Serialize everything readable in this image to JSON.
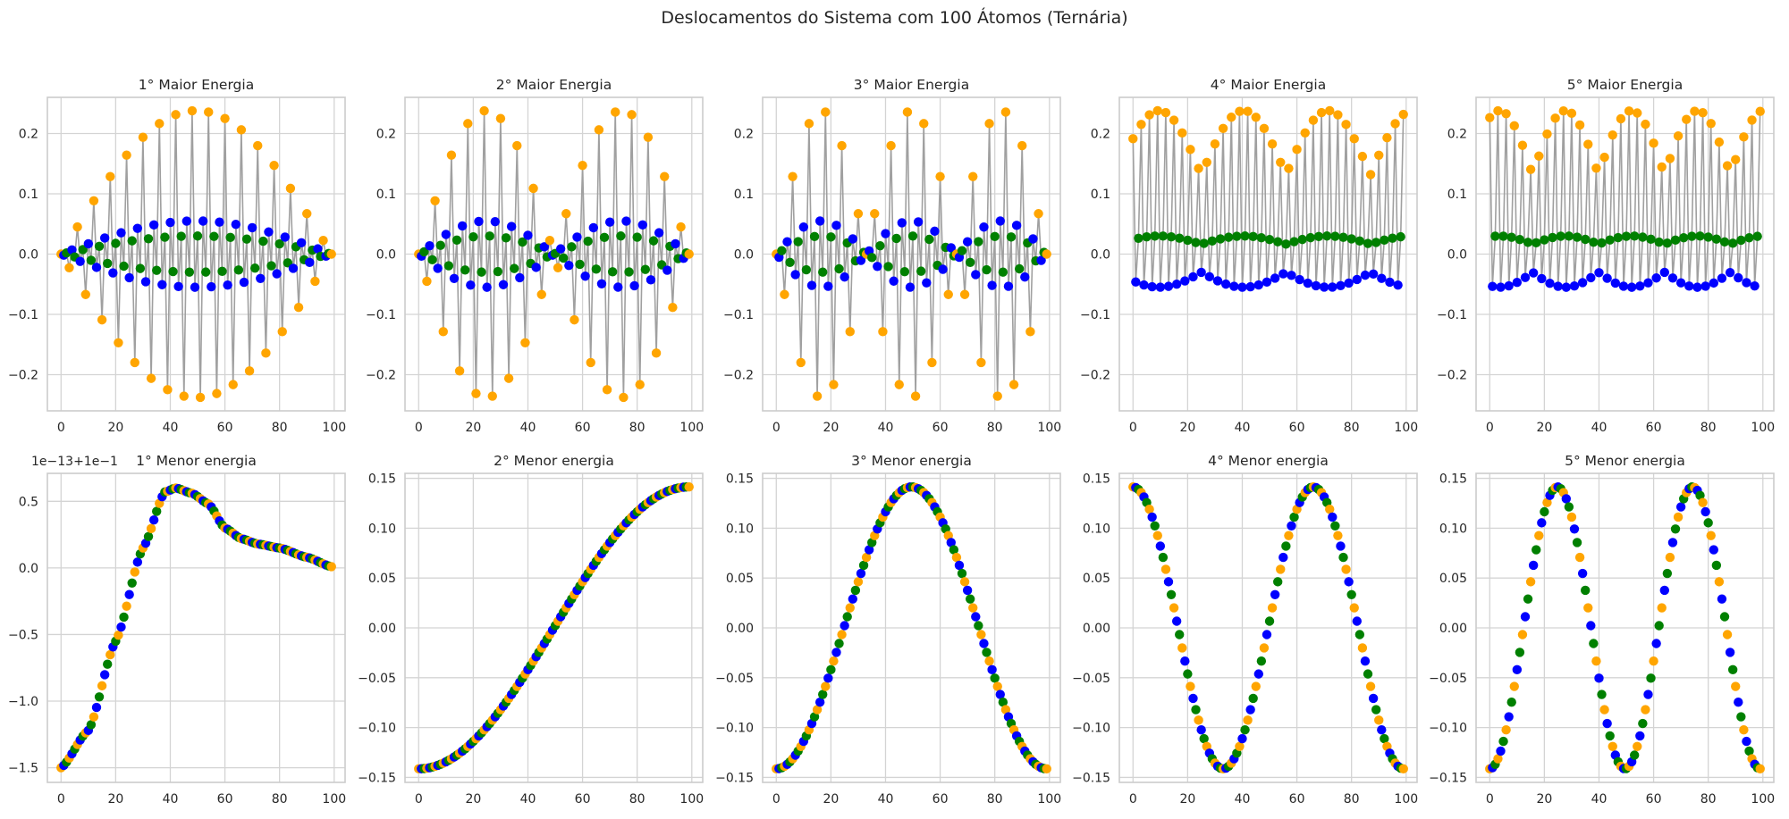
{
  "figure": {
    "suptitle": "Deslocamentos do Sistema com 100 Átomos (Ternária)",
    "colors": {
      "atom_a": "#FFA500",
      "atom_b": "#0000FF",
      "atom_c": "#008000",
      "connecting_line": "#A0A0A0",
      "grid": "#D4D4D4",
      "axes_edge": "#CCCCCC",
      "text": "#262626"
    },
    "marker_color_cycle": [
      "atom_a",
      "atom_b",
      "atom_c"
    ]
  },
  "chart_data": [
    {
      "type": "line",
      "title": "1° Maior Energia",
      "mode": "high",
      "alternation": "single",
      "envelope": "hump",
      "amplitude": {
        "outer": 0.238,
        "mid": 0.055,
        "inner": 0.03
      },
      "x_range": [
        0,
        99
      ],
      "n_atoms": 100,
      "xlim": [
        -5,
        104
      ],
      "ylim": [
        -0.26,
        0.26
      ],
      "xticks": [
        0,
        20,
        40,
        60,
        80,
        100
      ],
      "xtick_labels": [
        "0",
        "20",
        "40",
        "60",
        "80",
        "100"
      ],
      "yticks": [
        -0.2,
        -0.1,
        0.0,
        0.1,
        0.2
      ],
      "ytick_labels": [
        "−0.2",
        "−0.1",
        "0.0",
        "0.1",
        "0.2"
      ]
    },
    {
      "type": "line",
      "title": "2° Maior Energia",
      "mode": "high",
      "alternation": "single",
      "envelope": "double",
      "amplitude": {
        "outer": 0.238,
        "mid": 0.055,
        "inner": 0.03
      },
      "x_range": [
        0,
        99
      ],
      "n_atoms": 100,
      "xlim": [
        -5,
        104
      ],
      "ylim": [
        -0.26,
        0.26
      ],
      "xticks": [
        0,
        20,
        40,
        60,
        80,
        100
      ],
      "xtick_labels": [
        "0",
        "20",
        "40",
        "60",
        "80",
        "100"
      ],
      "yticks": [
        -0.2,
        -0.1,
        0.0,
        0.1,
        0.2
      ],
      "ytick_labels": [
        "−0.2",
        "−0.1",
        "0.0",
        "0.1",
        "0.2"
      ]
    },
    {
      "type": "line",
      "title": "3° Maior Energia",
      "mode": "high",
      "alternation": "single",
      "envelope": "triple",
      "amplitude": {
        "outer": 0.238,
        "mid": 0.055,
        "inner": 0.03
      },
      "x_range": [
        0,
        99
      ],
      "n_atoms": 100,
      "xlim": [
        -5,
        104
      ],
      "ylim": [
        -0.26,
        0.26
      ],
      "xticks": [
        0,
        20,
        40,
        60,
        80,
        100
      ],
      "xtick_labels": [
        "0",
        "20",
        "40",
        "60",
        "80",
        "100"
      ],
      "yticks": [
        -0.2,
        -0.1,
        0.0,
        0.1,
        0.2
      ],
      "ytick_labels": [
        "−0.2",
        "−0.1",
        "0.0",
        "0.1",
        "0.2"
      ]
    },
    {
      "type": "line",
      "title": "4° Maior Energia",
      "mode": "high",
      "alternation": "pairs",
      "envelope": "beat",
      "amplitude": {
        "outer": 0.238,
        "mid": 0.055,
        "inner": 0.03
      },
      "x_range": [
        0,
        99
      ],
      "n_atoms": 100,
      "xlim": [
        -5,
        104
      ],
      "ylim": [
        -0.26,
        0.26
      ],
      "xticks": [
        0,
        20,
        40,
        60,
        80,
        100
      ],
      "xtick_labels": [
        "0",
        "20",
        "40",
        "60",
        "80",
        "100"
      ],
      "yticks": [
        -0.2,
        -0.1,
        0.0,
        0.1,
        0.2
      ],
      "ytick_labels": [
        "−0.2",
        "−0.1",
        "0.0",
        "0.1",
        "0.2"
      ]
    },
    {
      "type": "line",
      "title": "5° Maior Energia",
      "mode": "high",
      "alternation": "pairs",
      "envelope": "beat2",
      "amplitude": {
        "outer": 0.238,
        "mid": 0.055,
        "inner": 0.03
      },
      "x_range": [
        0,
        99
      ],
      "n_atoms": 100,
      "xlim": [
        -5,
        104
      ],
      "ylim": [
        -0.26,
        0.26
      ],
      "xticks": [
        0,
        20,
        40,
        60,
        80,
        100
      ],
      "xtick_labels": [
        "0",
        "20",
        "40",
        "60",
        "80",
        "100"
      ],
      "yticks": [
        -0.2,
        -0.1,
        0.0,
        0.1,
        0.2
      ],
      "ytick_labels": [
        "−0.2",
        "−0.1",
        "0.0",
        "0.1",
        "0.2"
      ]
    },
    {
      "type": "scatter",
      "title": "1° Menor energia",
      "mode": "low",
      "offset_text": "1e−13+1e−1",
      "x_range": [
        0,
        99
      ],
      "n_atoms": 100,
      "y_anchor_x": [
        0,
        10,
        20,
        30,
        38,
        42,
        48,
        54,
        60,
        66,
        72,
        80,
        90,
        99
      ],
      "y_anchor_y": [
        -1.5,
        -1.22,
        -0.55,
        0.15,
        0.57,
        0.6,
        0.56,
        0.48,
        0.3,
        0.22,
        0.18,
        0.15,
        0.08,
        0.01
      ],
      "xlim": [
        -5,
        104
      ],
      "ylim": [
        -1.61,
        0.71
      ],
      "xticks": [
        0,
        20,
        40,
        60,
        80,
        100
      ],
      "xtick_labels": [
        "0",
        "20",
        "40",
        "60",
        "80",
        "100"
      ],
      "yticks": [
        -1.5,
        -1.0,
        -0.5,
        0.0,
        0.5
      ],
      "ytick_labels": [
        "−1.5",
        "−1.0",
        "−0.5",
        "0.0",
        "0.5"
      ]
    },
    {
      "type": "scatter",
      "title": "2° Menor energia",
      "mode": "low",
      "shape": "cos",
      "harmonic": 1,
      "amplitude": 0.1414,
      "x_range": [
        0,
        99
      ],
      "n_atoms": 100,
      "xlim": [
        -5,
        104
      ],
      "ylim": [
        -0.155,
        0.155
      ],
      "xticks": [
        0,
        20,
        40,
        60,
        80,
        100
      ],
      "xtick_labels": [
        "0",
        "20",
        "40",
        "60",
        "80",
        "100"
      ],
      "yticks": [
        -0.15,
        -0.1,
        -0.05,
        0.0,
        0.05,
        0.1,
        0.15
      ],
      "ytick_labels": [
        "−0.15",
        "−0.10",
        "−0.05",
        "0.00",
        "0.05",
        "0.10",
        "0.15"
      ]
    },
    {
      "type": "scatter",
      "title": "3° Menor energia",
      "mode": "low",
      "shape": "cos",
      "harmonic": 2,
      "amplitude": 0.1414,
      "x_range": [
        0,
        99
      ],
      "n_atoms": 100,
      "xlim": [
        -5,
        104
      ],
      "ylim": [
        -0.155,
        0.155
      ],
      "xticks": [
        0,
        20,
        40,
        60,
        80,
        100
      ],
      "xtick_labels": [
        "0",
        "20",
        "40",
        "60",
        "80",
        "100"
      ],
      "yticks": [
        -0.15,
        -0.1,
        -0.05,
        0.0,
        0.05,
        0.1,
        0.15
      ],
      "ytick_labels": [
        "−0.15",
        "−0.10",
        "−0.05",
        "0.00",
        "0.05",
        "0.10",
        "0.15"
      ]
    },
    {
      "type": "scatter",
      "title": "4° Menor energia",
      "mode": "low",
      "shape": "cos",
      "harmonic": 3,
      "amplitude": 0.1414,
      "x_range": [
        0,
        99
      ],
      "n_atoms": 100,
      "xlim": [
        -5,
        104
      ],
      "ylim": [
        -0.155,
        0.155
      ],
      "xticks": [
        0,
        20,
        40,
        60,
        80,
        100
      ],
      "xtick_labels": [
        "0",
        "20",
        "40",
        "60",
        "80",
        "100"
      ],
      "yticks": [
        -0.15,
        -0.1,
        -0.05,
        0.0,
        0.05,
        0.1,
        0.15
      ],
      "ytick_labels": [
        "−0.15",
        "−0.10",
        "−0.05",
        "0.00",
        "0.05",
        "0.10",
        "0.15"
      ]
    },
    {
      "type": "scatter",
      "title": "5° Menor energia",
      "mode": "low",
      "shape": "cos",
      "harmonic": 4,
      "amplitude": 0.1414,
      "x_range": [
        0,
        99
      ],
      "n_atoms": 100,
      "xlim": [
        -5,
        104
      ],
      "ylim": [
        -0.155,
        0.155
      ],
      "xticks": [
        0,
        20,
        40,
        60,
        80,
        100
      ],
      "xtick_labels": [
        "0",
        "20",
        "40",
        "60",
        "80",
        "100"
      ],
      "yticks": [
        -0.15,
        -0.1,
        -0.05,
        0.0,
        0.05,
        0.1,
        0.15
      ],
      "ytick_labels": [
        "−0.15",
        "−0.10",
        "−0.05",
        "0.00",
        "0.05",
        "0.10",
        "0.15"
      ]
    }
  ]
}
